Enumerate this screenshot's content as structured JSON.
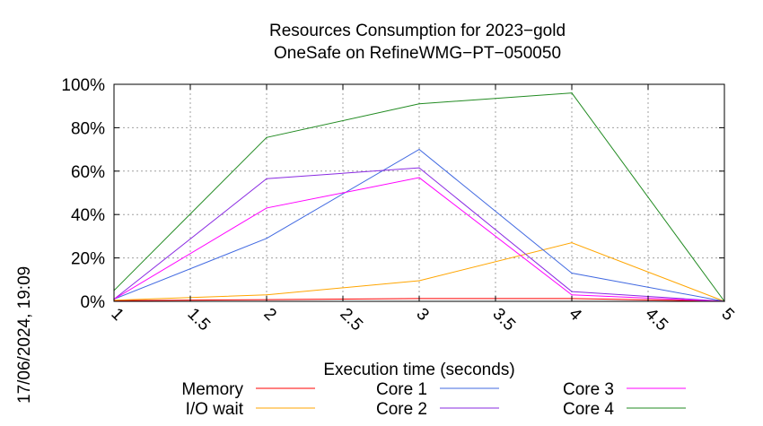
{
  "chart_data": {
    "type": "line",
    "title": [
      "Resources Consumption for 2023−gold",
      "OneSafe on RefineWMG−PT−050050"
    ],
    "xlabel": "Execution time (seconds)",
    "ylabel": "",
    "xlim": [
      1,
      5
    ],
    "ylim": [
      0,
      100
    ],
    "xticks": [
      1,
      1.5,
      2,
      2.5,
      3,
      3.5,
      4,
      4.5,
      5
    ],
    "xtick_labels": [
      "1",
      "1.5",
      "2",
      "2.5",
      "3",
      "3.5",
      "4",
      "4.5",
      "5"
    ],
    "yticks": [
      0,
      20,
      40,
      60,
      80,
      100
    ],
    "ytick_labels": [
      "0%",
      "20%",
      "40%",
      "60%",
      "80%",
      "100%"
    ],
    "grid": true,
    "legend_position": "bottom",
    "x": [
      1,
      2,
      3,
      4,
      5
    ],
    "series": [
      {
        "name": "Memory",
        "color": "#ff0000",
        "values": [
          0.3,
          0.8,
          1.3,
          1.3,
          0
        ]
      },
      {
        "name": "I/O wait",
        "color": "#ffa500",
        "values": [
          0.5,
          3,
          9.5,
          27,
          0
        ]
      },
      {
        "name": "Core 1",
        "color": "#4169e1",
        "values": [
          1,
          29,
          70,
          13,
          0
        ]
      },
      {
        "name": "Core 2",
        "color": "#8a2be2",
        "values": [
          1,
          56.5,
          61.5,
          4.5,
          0
        ]
      },
      {
        "name": "Core 3",
        "color": "#ff00ff",
        "values": [
          1,
          43,
          57,
          3,
          0
        ]
      },
      {
        "name": "Core 4",
        "color": "#228b22",
        "values": [
          5,
          75.5,
          91,
          96,
          0
        ]
      }
    ],
    "timestamp": "17/06/2024, 19:09"
  }
}
